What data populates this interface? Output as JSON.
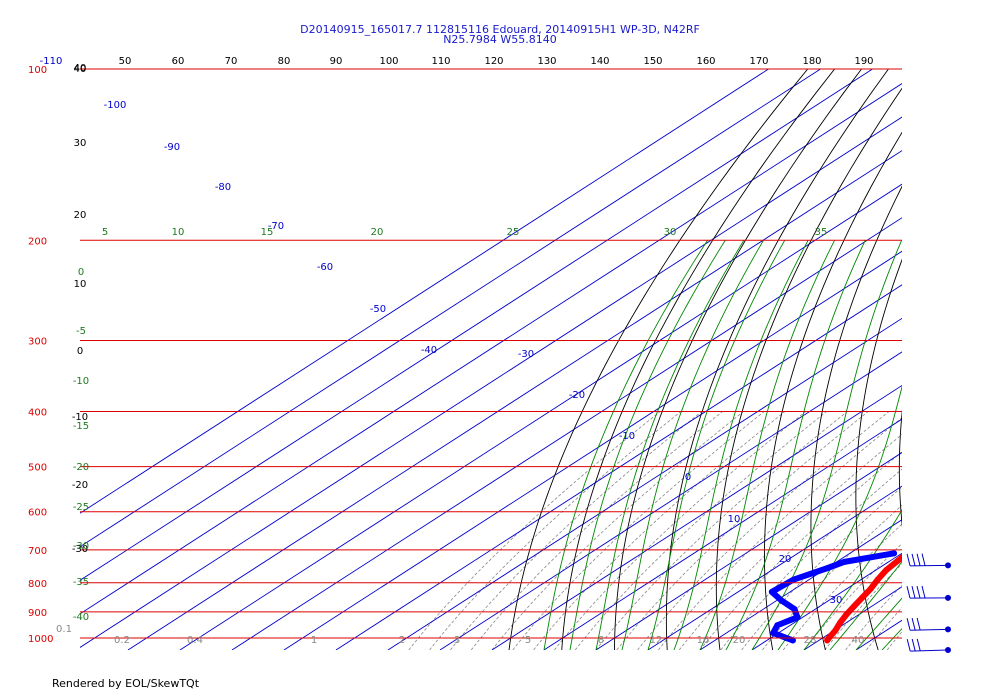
{
  "chart_data": {
    "type": "skew-t",
    "title": "D20140915_165017.7 112815116 Edouard, 20140915H1 WP-3D, N42RF",
    "subtitle": "N25.7984 W55.8140",
    "footer": "Rendered by EOL/SkewTQt",
    "pressure_axis": {
      "range": [
        1050,
        100
      ],
      "ticks": [
        100,
        200,
        300,
        400,
        500,
        600,
        700,
        800,
        900,
        1000
      ]
    },
    "temperature_top_ticks": [
      -110,
      40,
      50,
      60,
      70,
      80,
      90,
      100,
      110,
      120,
      130,
      140,
      150,
      160,
      170,
      180,
      190
    ],
    "temperature_bottom_ticks": [
      0.1,
      0.2,
      0.4,
      1,
      2,
      3,
      5,
      8,
      12,
      16,
      20,
      28,
      40
    ],
    "isotherms_labels": [
      -100,
      -90,
      -80,
      -70,
      -60,
      -50,
      -40,
      -30,
      -20,
      -10,
      0,
      10,
      20,
      30
    ],
    "dry_adiabats_labels": [
      40,
      30,
      20,
      10,
      0,
      -10,
      -20,
      -30
    ],
    "moist_adiabat_labels": [
      5,
      10,
      15,
      20,
      25,
      30,
      35
    ],
    "mixing_ratio_labels": [
      0,
      -5,
      -10,
      -15,
      -20,
      -25,
      -30,
      -35,
      -40
    ],
    "temperature_profile": {
      "name": "Temperature",
      "color": "#ff0000",
      "points": [
        {
          "p": 710,
          "t": 11.0
        },
        {
          "p": 730,
          "t": 11.4
        },
        {
          "p": 760,
          "t": 12.0
        },
        {
          "p": 790,
          "t": 13.2
        },
        {
          "p": 820,
          "t": 14.6
        },
        {
          "p": 850,
          "t": 15.6
        },
        {
          "p": 880,
          "t": 16.6
        },
        {
          "p": 910,
          "t": 17.6
        },
        {
          "p": 940,
          "t": 18.8
        },
        {
          "p": 970,
          "t": 20.2
        },
        {
          "p": 1000,
          "t": 21.2
        },
        {
          "p": 1010,
          "t": 21.6
        }
      ]
    },
    "dewpoint_profile": {
      "name": "Dewpoint",
      "color": "#0000ff",
      "points": [
        {
          "p": 710,
          "t": 8.5
        },
        {
          "p": 735,
          "t": 1.5
        },
        {
          "p": 755,
          "t": 0.0
        },
        {
          "p": 790,
          "t": -3.0
        },
        {
          "p": 830,
          "t": -3.5
        },
        {
          "p": 860,
          "t": 1.0
        },
        {
          "p": 890,
          "t": 6.0
        },
        {
          "p": 920,
          "t": 9.0
        },
        {
          "p": 950,
          "t": 7.5
        },
        {
          "p": 980,
          "t": 9.0
        },
        {
          "p": 1000,
          "t": 13.0
        },
        {
          "p": 1010,
          "t": 15.0
        }
      ]
    },
    "wind_barbs": [
      {
        "p": 710,
        "direction_deg": 110,
        "speed_kt": 35
      },
      {
        "p": 810,
        "direction_deg": 100,
        "speed_kt": 35
      },
      {
        "p": 920,
        "direction_deg": 120,
        "speed_kt": 30
      },
      {
        "p": 1000,
        "direction_deg": 130,
        "speed_kt": 30
      }
    ],
    "colors": {
      "isobar": "#dd0000",
      "isotherm": "#0000cc",
      "dry_adiabat": "#000000",
      "moist_adiabat": "#008800",
      "mixing_ratio": "#888888",
      "title": "#1a1acc"
    }
  }
}
